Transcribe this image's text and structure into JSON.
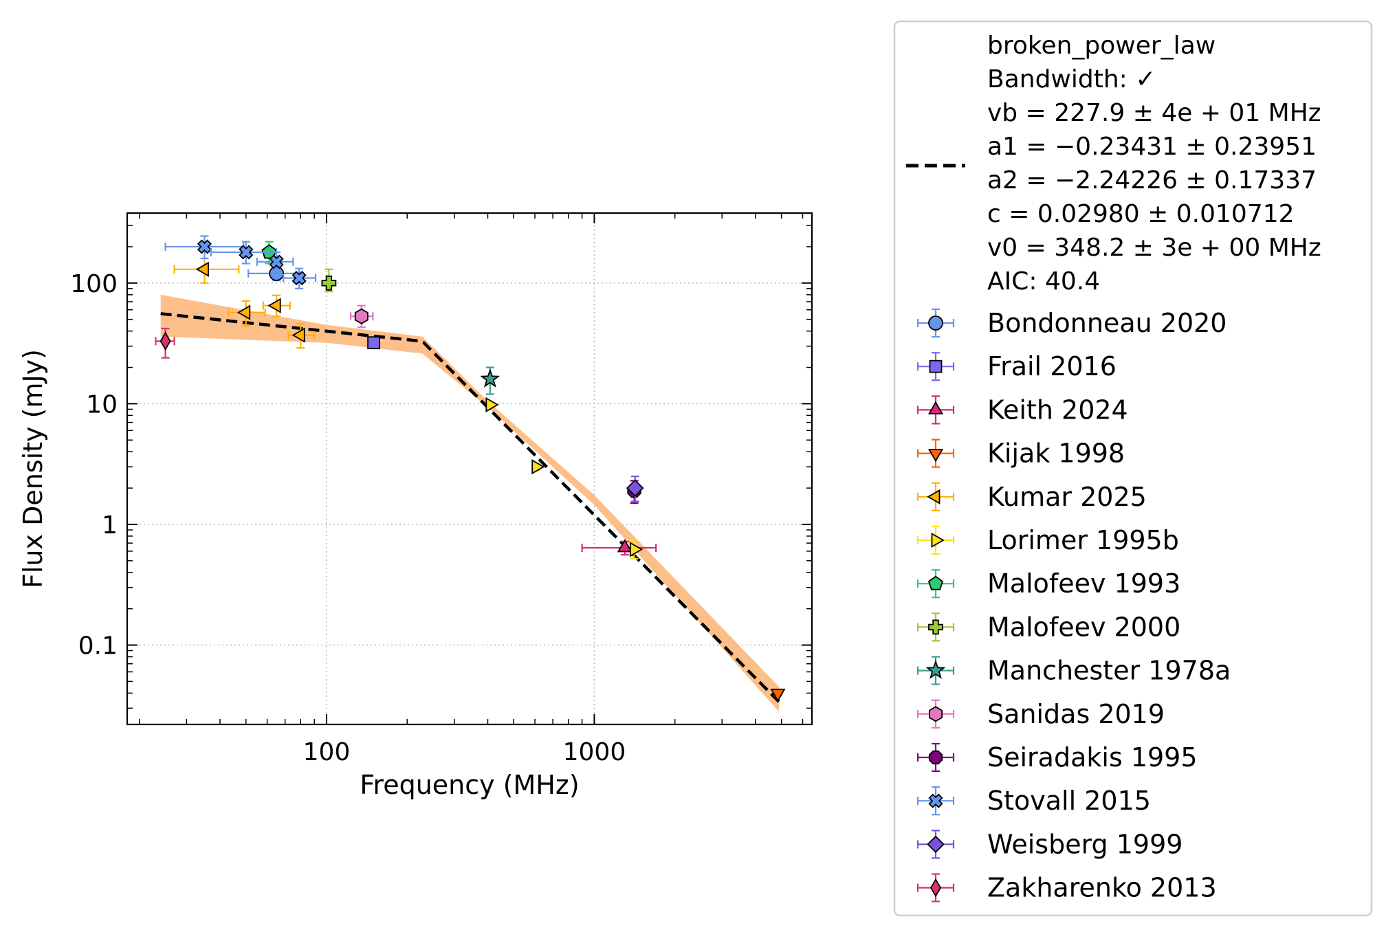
{
  "chart_data": {
    "type": "scatter",
    "xlabel": "Frequency (MHz)",
    "ylabel": "Flux Density (mJy)",
    "xscale": "log",
    "yscale": "log",
    "xlim": [
      18,
      6500
    ],
    "ylim": [
      0.022,
      380
    ],
    "grid": true,
    "legend_position": "outside-right",
    "x_ticks": [
      {
        "value": 100,
        "label": "100"
      },
      {
        "value": 1000,
        "label": "1000"
      }
    ],
    "y_ticks": [
      {
        "value": 0.1,
        "label": "0.1"
      },
      {
        "value": 1,
        "label": "1"
      },
      {
        "value": 10,
        "label": "10"
      },
      {
        "value": 100,
        "label": "100"
      }
    ],
    "fit": {
      "label_lines": [
        "broken_power_law",
        "Bandwidth: ✓",
        "vb = 227.9 ± 4e + 01 MHz",
        "a1 = −0.23431 ± 0.23951",
        "a2 = −2.24226 ± 0.17337",
        "c = 0.02980 ± 0.010712",
        "v0 = 348.2 ± 3e + 00 MHz",
        "AIC: 40.4"
      ],
      "line_color": "#000000",
      "band_color": "#fdbf8a",
      "vb": 227.9,
      "a1": -0.23431,
      "a2": -2.24226,
      "c": 0.0298,
      "v0": 348.2,
      "x_range": [
        24,
        4900
      ],
      "band_low": [
        [
          24,
          36
        ],
        [
          100,
          32
        ],
        [
          228,
          26
        ],
        [
          400,
          9.3
        ],
        [
          1000,
          1.45
        ],
        [
          4900,
          0.028
        ]
      ],
      "band_high": [
        [
          24,
          80
        ],
        [
          100,
          45
        ],
        [
          228,
          36
        ],
        [
          400,
          10.5
        ],
        [
          1000,
          1.75
        ],
        [
          4900,
          0.045
        ]
      ]
    },
    "series": [
      {
        "name": "Bondonneau 2020",
        "marker": "circle",
        "color": "#6495ed",
        "edge": "#4f73c8",
        "points": [
          {
            "x": 65,
            "y": 120,
            "xerr": [
              14,
              14
            ],
            "yerr": [
              15,
              30
            ]
          }
        ]
      },
      {
        "name": "Frail 2016",
        "marker": "square",
        "color": "#7b68ee",
        "edge": "#6a5acd",
        "points": [
          {
            "x": 150,
            "y": 32,
            "xerr": [
              0,
              0
            ],
            "yerr": [
              2,
              2
            ]
          }
        ]
      },
      {
        "name": "Keith 2024",
        "marker": "triangle-up",
        "color": "#dc267f",
        "edge": "#c2185b",
        "points": [
          {
            "x": 1300,
            "y": 0.64,
            "xerr": [
              400,
              400
            ],
            "yerr": [
              0.08,
              0.08
            ]
          }
        ]
      },
      {
        "name": "Kijak 1998",
        "marker": "triangle-down",
        "color": "#fe6100",
        "edge": "#e65100",
        "points": [
          {
            "x": 4850,
            "y": 0.04,
            "xerr": [
              0,
              0
            ],
            "yerr": [
              0.002,
              0.002
            ]
          }
        ]
      },
      {
        "name": "Kumar 2025",
        "marker": "triangle-left",
        "color": "#ffb000",
        "edge": "#f5a000",
        "points": [
          {
            "x": 35,
            "y": 130,
            "xerr": [
              8,
              12
            ],
            "yerr": [
              30,
              30
            ]
          },
          {
            "x": 50,
            "y": 57,
            "xerr": [
              7,
              9
            ],
            "yerr": [
              13,
              14
            ]
          },
          {
            "x": 65,
            "y": 65,
            "xerr": [
              7,
              8
            ],
            "yerr": [
              12,
              14
            ]
          },
          {
            "x": 80,
            "y": 37,
            "xerr": [
              8,
              10
            ],
            "yerr": [
              8,
              9
            ]
          }
        ]
      },
      {
        "name": "Lorimer 1995b",
        "marker": "triangle-right",
        "color": "#ffe119",
        "edge": "#e8c800",
        "points": [
          {
            "x": 408,
            "y": 9.8,
            "xerr": [
              0,
              0
            ],
            "yerr": [
              0.5,
              0.5
            ]
          },
          {
            "x": 606,
            "y": 3.0,
            "xerr": [
              0,
              0
            ],
            "yerr": [
              0.2,
              0.2
            ]
          },
          {
            "x": 1408,
            "y": 0.62,
            "xerr": [
              0,
              0
            ],
            "yerr": [
              0.1,
              0.12
            ]
          }
        ]
      },
      {
        "name": "Malofeev 1993",
        "marker": "pentagon",
        "color": "#2ecc71",
        "edge": "#1fa85a",
        "points": [
          {
            "x": 61,
            "y": 180,
            "xerr": [
              0,
              0
            ],
            "yerr": [
              35,
              40
            ]
          }
        ]
      },
      {
        "name": "Malofeev 2000",
        "marker": "plus",
        "color": "#9acd32",
        "edge": "#6b8e23",
        "points": [
          {
            "x": 102,
            "y": 100,
            "xerr": [
              0,
              0
            ],
            "yerr": [
              15,
              30
            ]
          }
        ]
      },
      {
        "name": "Manchester 1978a",
        "marker": "star",
        "color": "#3a9e8f",
        "edge": "#2a7f72",
        "points": [
          {
            "x": 408,
            "y": 16,
            "xerr": [
              0,
              0
            ],
            "yerr": [
              4,
              4
            ]
          }
        ]
      },
      {
        "name": "Sanidas 2019",
        "marker": "hexagon",
        "color": "#e377c2",
        "edge": "#c45aa3",
        "points": [
          {
            "x": 135,
            "y": 53,
            "xerr": [
              12,
              14
            ],
            "yerr": [
              10,
              12
            ]
          }
        ]
      },
      {
        "name": "Seiradakis 1995",
        "marker": "octagon",
        "color": "#800080",
        "edge": "#5e005e",
        "points": [
          {
            "x": 1410,
            "y": 1.9,
            "xerr": [
              0,
              0
            ],
            "yerr": [
              0.4,
              0.4
            ]
          }
        ]
      },
      {
        "name": "Stovall 2015",
        "marker": "x-filled",
        "color": "#6495ed",
        "edge": "#4169e1",
        "points": [
          {
            "x": 35,
            "y": 200,
            "xerr": [
              10,
              14
            ],
            "yerr": [
              40,
              45
            ]
          },
          {
            "x": 50,
            "y": 180,
            "xerr": [
              13,
              15
            ],
            "yerr": [
              35,
              40
            ]
          },
          {
            "x": 65,
            "y": 150,
            "xerr": [
              10,
              10
            ],
            "yerr": [
              28,
              30
            ]
          },
          {
            "x": 79,
            "y": 110,
            "xerr": [
              10,
              12
            ],
            "yerr": [
              20,
              22
            ]
          }
        ]
      },
      {
        "name": "Weisberg 1999",
        "marker": "diamond",
        "color": "#7b52e0",
        "edge": "#5a35c4",
        "points": [
          {
            "x": 1420,
            "y": 2.0,
            "xerr": [
              0,
              0
            ],
            "yerr": [
              0.45,
              0.5
            ]
          }
        ]
      },
      {
        "name": "Zakharenko 2013",
        "marker": "thin-diamond",
        "color": "#d6336c",
        "edge": "#b0245a",
        "points": [
          {
            "x": 25,
            "y": 33,
            "xerr": [
              2,
              2
            ],
            "yerr": [
              9,
              9
            ]
          }
        ]
      }
    ]
  }
}
